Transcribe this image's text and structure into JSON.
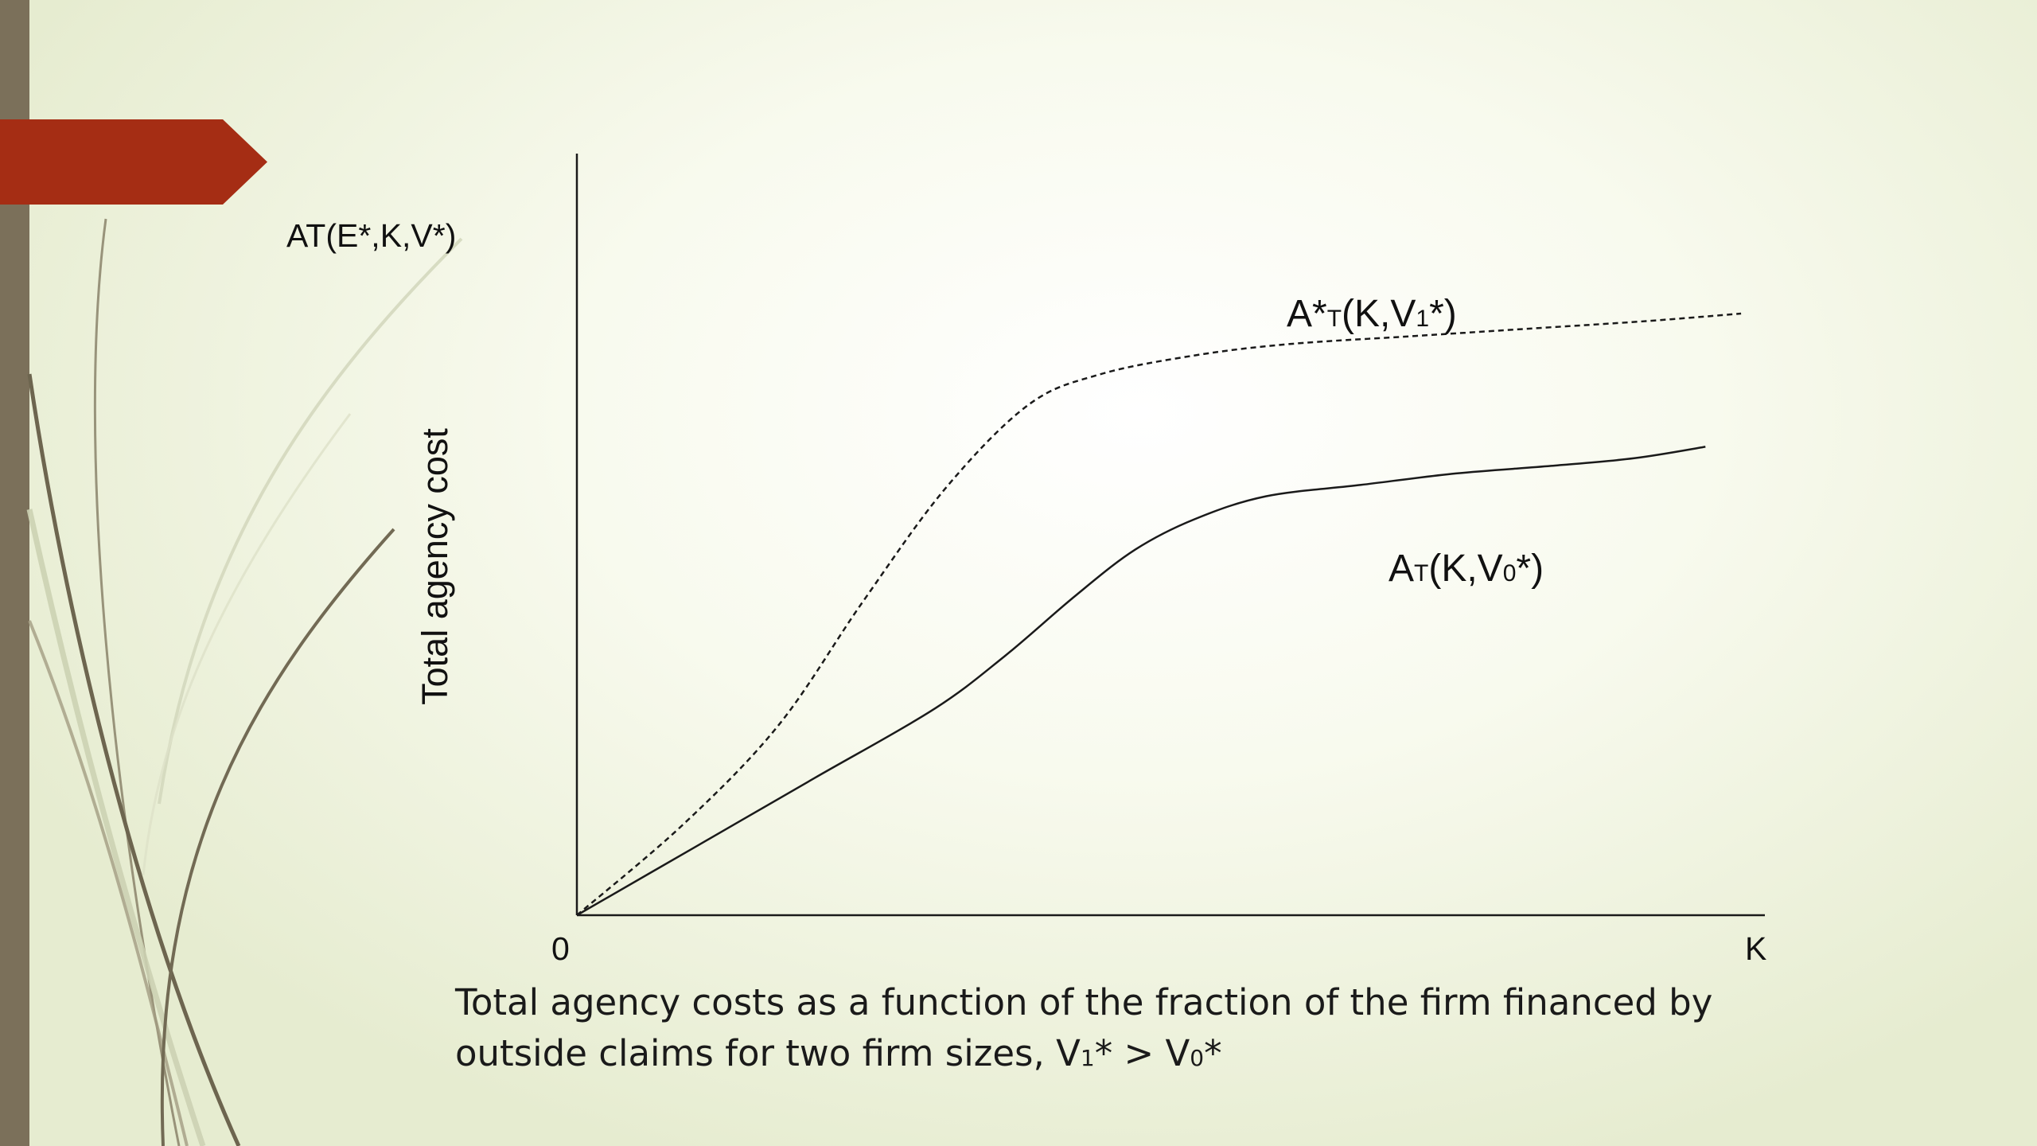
{
  "slide": {
    "accent_color": "#a52d14",
    "bar_color": "#7b705a",
    "decoration": "curved-grass-lines-icon"
  },
  "chart_data": {
    "type": "line",
    "title": "AT(E*,K,V*)",
    "ylabel": "Total agency cost",
    "xlabel": "K",
    "origin_label": "0",
    "grid": false,
    "axis_ticks": "none",
    "series": [
      {
        "name_main": "A*",
        "name_sub": "T",
        "name_args_a": "(K,V",
        "name_args_sub": "1",
        "name_args_b": "*)",
        "style": "dashed",
        "x": [
          0,
          0.09,
          0.17,
          0.24,
          0.31,
          0.38,
          0.44,
          0.52,
          0.6,
          0.7,
          0.8,
          0.9,
          0.98
        ],
        "y": [
          0,
          0.12,
          0.25,
          0.41,
          0.56,
          0.67,
          0.71,
          0.735,
          0.75,
          0.76,
          0.77,
          0.78,
          0.79
        ]
      },
      {
        "name_main": "A",
        "name_sub": "T",
        "name_args_a": "(K,V",
        "name_args_sub": "0",
        "name_args_b": "*)",
        "style": "solid",
        "x": [
          0,
          0.1,
          0.2,
          0.3,
          0.36,
          0.42,
          0.47,
          0.52,
          0.58,
          0.66,
          0.74,
          0.82,
          0.89,
          0.95
        ],
        "y": [
          0,
          0.09,
          0.18,
          0.27,
          0.34,
          0.42,
          0.48,
          0.52,
          0.55,
          0.565,
          0.58,
          0.59,
          0.6,
          0.615
        ]
      }
    ]
  },
  "caption": {
    "line1": "Total agency costs as a function of the fraction of the firm financed by",
    "line2_text": "outside claims for two firm sizes, V",
    "line2_sub_a": "1",
    "line2_mid": "* > V",
    "line2_sub_b": "0",
    "line2_end": "*"
  }
}
